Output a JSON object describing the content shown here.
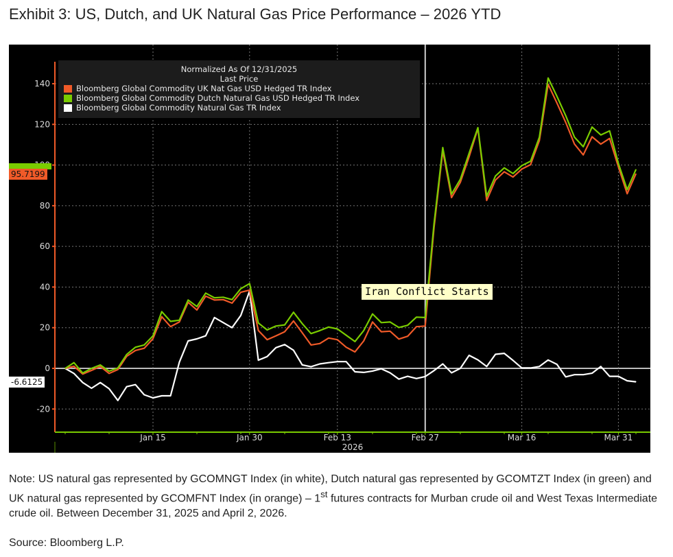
{
  "title": "Exhibit 3: US, Dutch, and UK Natural Gas Price Performance – 2026 YTD",
  "note": {
    "before": "Note: US natural gas represented by GCOMNGT Index (in white), Dutch natural gas represented by GCOMTZT Index (in green) and UK natural gas represented by GCOMFNT Index (in orange) – 1",
    "sup": "st",
    "after": " futures contracts for Murban crude oil and West Texas Intermediate crude oil. Between December 31, 2025 and April 2, 2026."
  },
  "source": "Source: Bloomberg L.P.",
  "chart_data": {
    "type": "line",
    "legend_header": [
      "Normalized As Of 12/31/2025",
      "Last Price"
    ],
    "legend_position": "top-left",
    "grid": true,
    "background": "#000000",
    "ylim": [
      -30,
      150
    ],
    "yticks": [
      -20,
      0,
      20,
      40,
      60,
      80,
      100,
      120,
      140
    ],
    "xticks": [
      {
        "date": "2026-01-15",
        "label": "Jan 15"
      },
      {
        "date": "2026-01-30",
        "label": "Jan 30"
      },
      {
        "date": "2026-02-13",
        "label": "Feb 13"
      },
      {
        "date": "2026-02-27",
        "label": "Feb 27"
      },
      {
        "date": "2026-03-16",
        "label": "Mar 16"
      },
      {
        "date": "2026-03-31",
        "label": "Mar 31"
      }
    ],
    "xaxis_year_label": "2026",
    "x": [
      "2025-12-31",
      "2026-01-02",
      "2026-01-05",
      "2026-01-06",
      "2026-01-07",
      "2026-01-08",
      "2026-01-09",
      "2026-01-12",
      "2026-01-13",
      "2026-01-14",
      "2026-01-15",
      "2026-01-16",
      "2026-01-19",
      "2026-01-20",
      "2026-01-21",
      "2026-01-22",
      "2026-01-23",
      "2026-01-26",
      "2026-01-27",
      "2026-01-28",
      "2026-01-29",
      "2026-01-30",
      "2026-02-02",
      "2026-02-03",
      "2026-02-04",
      "2026-02-05",
      "2026-02-06",
      "2026-02-09",
      "2026-02-10",
      "2026-02-11",
      "2026-02-12",
      "2026-02-13",
      "2026-02-16",
      "2026-02-17",
      "2026-02-18",
      "2026-02-19",
      "2026-02-20",
      "2026-02-23",
      "2026-02-24",
      "2026-02-25",
      "2026-02-26",
      "2026-02-27",
      "2026-03-02",
      "2026-03-03",
      "2026-03-04",
      "2026-03-05",
      "2026-03-06",
      "2026-03-09",
      "2026-03-10",
      "2026-03-11",
      "2026-03-12",
      "2026-03-13",
      "2026-03-16",
      "2026-03-17",
      "2026-03-18",
      "2026-03-19",
      "2026-03-20",
      "2026-03-23",
      "2026-03-24",
      "2026-03-25",
      "2026-03-26",
      "2026-03-27",
      "2026-03-30",
      "2026-03-31",
      "2026-04-01",
      "2026-04-02"
    ],
    "series": [
      {
        "name": "Bloomberg Global Commodity UK Nat Gas USD Hedged TR Index",
        "color": "#f05a28",
        "last_label": "95.7199",
        "values": [
          0,
          1,
          -2.8,
          -1,
          0.9,
          -2.5,
          -0.6,
          5.9,
          8.8,
          9.9,
          14.6,
          25.4,
          20.5,
          22.8,
          32.5,
          28.7,
          35.5,
          33.6,
          33.8,
          32.1,
          37.4,
          38.5,
          18.6,
          14.1,
          16,
          18,
          23.3,
          17.5,
          11.5,
          12.2,
          14.9,
          14.1,
          10.4,
          8.1,
          13.5,
          22.8,
          18,
          18.3,
          14.4,
          15.8,
          20.5,
          20.8,
          69,
          107,
          84,
          91.5,
          104,
          118,
          82.6,
          92.6,
          96.7,
          94.1,
          98,
          100.2,
          112,
          139.7,
          130.5,
          121,
          110.3,
          105,
          113.9,
          110.3,
          113.1,
          99.1,
          85.9,
          95.7
        ]
      },
      {
        "name": "Bloomberg Global Commodity Dutch Natural Gas USD Hedged TR Index",
        "color": "#7acc00",
        "values": [
          0,
          2.8,
          -2.3,
          0,
          1.7,
          -1.4,
          0.2,
          6.8,
          10.4,
          11.5,
          16,
          27.9,
          23.1,
          23.7,
          33.6,
          30.4,
          37,
          34.7,
          35,
          33.8,
          39.2,
          41.7,
          22.3,
          18.9,
          20.8,
          21.4,
          27.6,
          22,
          17.1,
          18.6,
          20.3,
          19.4,
          16.3,
          13.2,
          18.6,
          26.8,
          22.5,
          22.8,
          20.1,
          21.2,
          25.2,
          25,
          71,
          108.6,
          85.7,
          93,
          105.8,
          118.4,
          84.6,
          94.6,
          98.6,
          95.8,
          99.7,
          101.9,
          113.7,
          142.8,
          133.8,
          124.3,
          113.7,
          109,
          118.7,
          114.8,
          116.8,
          100.8,
          87.9,
          97.8
        ]
      },
      {
        "name": "Bloomberg Global Commodity Natural Gas TR Index",
        "color": "#ffffff",
        "last_label": "-6.6125",
        "values": [
          0,
          -2.5,
          -7,
          -9.8,
          -7,
          -10,
          -15.8,
          -9,
          -8,
          -13,
          -14.5,
          -13.5,
          -13.5,
          3,
          13.5,
          14.5,
          16,
          25,
          22.5,
          20,
          26,
          38,
          4,
          5.8,
          10.2,
          11.7,
          8.9,
          1.7,
          0.8,
          2.2,
          2.8,
          3.3,
          3.3,
          -1.7,
          -2,
          -1.3,
          -0.2,
          -2.2,
          -5.3,
          -3.9,
          -5,
          -4,
          -1.1,
          2.2,
          -2.2,
          0,
          6.4,
          4.2,
          0.9,
          6.9,
          7.4,
          3.9,
          0.2,
          0.2,
          0.9,
          4.1,
          2,
          -4.2,
          -3.1,
          -3.1,
          -2.4,
          0.9,
          -3.9,
          -3.9,
          -6.1,
          -6.6
        ]
      }
    ],
    "annotations": [
      {
        "date": "2026-02-27",
        "label": "Iran Conflict Starts"
      }
    ]
  }
}
